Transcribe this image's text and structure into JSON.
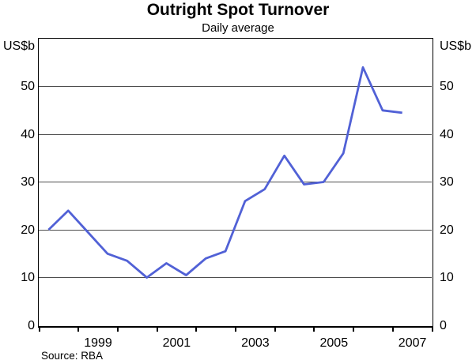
{
  "title": "Outright Spot Turnover",
  "subtitle": "Daily average",
  "source": "Source: RBA",
  "axis": {
    "unit_left": "US$b",
    "unit_right": "US$b"
  },
  "colors": {
    "line": "#5161d6",
    "grid": "#4d4d4d",
    "frame": "#000000",
    "text": "#000000",
    "background": "#ffffff"
  },
  "chart_data": {
    "type": "line",
    "title": "Outright Spot Turnover",
    "subtitle": "Daily average",
    "ylabel": "US$b",
    "ylim": [
      0,
      60
    ],
    "yticks": [
      0,
      10,
      20,
      30,
      40,
      50
    ],
    "x_range": [
      1998,
      2008
    ],
    "xticks_labeled": [
      1999,
      2001,
      2003,
      2005,
      2007
    ],
    "frequency": "semiannual",
    "grid": "horizontal",
    "legend": "none",
    "x": [
      1998.25,
      1998.75,
      1999.25,
      1999.75,
      2000.25,
      2000.75,
      2001.25,
      2001.75,
      2002.25,
      2002.75,
      2003.25,
      2003.75,
      2004.25,
      2004.75,
      2005.25,
      2005.75,
      2006.25,
      2006.75,
      2007.25
    ],
    "periods": [
      "1998 H1",
      "1998 H2",
      "1999 H1",
      "1999 H2",
      "2000 H1",
      "2000 H2",
      "2001 H1",
      "2001 H2",
      "2002 H1",
      "2002 H2",
      "2003 H1",
      "2003 H2",
      "2004 H1",
      "2004 H2",
      "2005 H1",
      "2005 H2",
      "2006 H1",
      "2006 H2",
      "2007 H1"
    ],
    "values": [
      20,
      24,
      19.5,
      15,
      13.5,
      10,
      13,
      10.5,
      14,
      15.5,
      26,
      28.5,
      35.5,
      29.5,
      30,
      36,
      54,
      45,
      44.5
    ],
    "source": "Source: RBA"
  }
}
